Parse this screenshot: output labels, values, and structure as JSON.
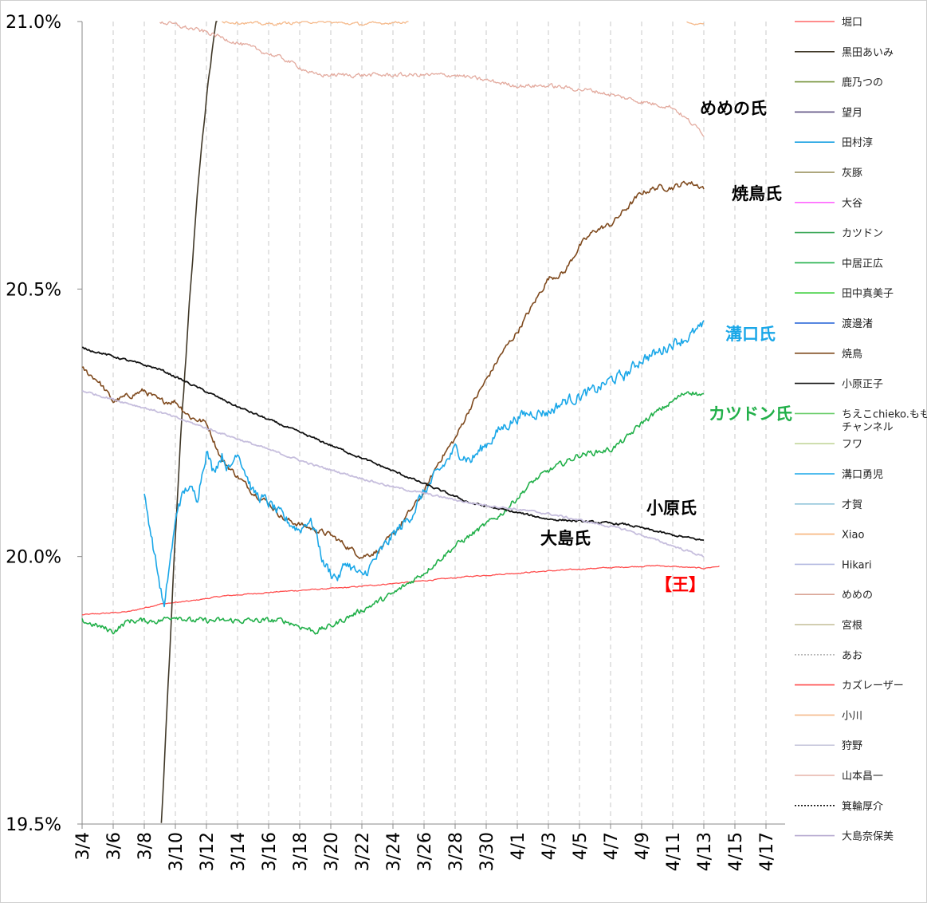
{
  "chart_data": {
    "type": "line",
    "title": "",
    "xlabel": "",
    "ylabel": "",
    "ylim": [
      19.5,
      21.0
    ],
    "x_range": [
      "3/4",
      "4/18"
    ],
    "y_ticks": [
      "21.0%",
      "20.5%",
      "20.0%",
      "19.5%"
    ],
    "x_tick_labels": [
      "3/4",
      "3/6",
      "3/8",
      "3/10",
      "3/12",
      "3/14",
      "3/16",
      "3/18",
      "3/20",
      "3/22",
      "3/24",
      "3/26",
      "3/28",
      "3/30",
      "4/1",
      "4/3",
      "4/5",
      "4/7",
      "4/9",
      "4/11",
      "4/13",
      "4/15",
      "4/17"
    ],
    "grid": "vertical dashed",
    "legend_position": "right",
    "legend": [
      {
        "name": "堀口",
        "color": "#ff6666",
        "dash": "solid"
      },
      {
        "name": "黒田あいみ",
        "color": "#403828",
        "dash": "solid"
      },
      {
        "name": "鹿乃つの",
        "color": "#77933c",
        "dash": "solid"
      },
      {
        "name": "望月",
        "color": "#5b4e80",
        "dash": "solid"
      },
      {
        "name": "田村淳",
        "color": "#1ba1e2",
        "dash": "solid"
      },
      {
        "name": "灰豚",
        "color": "#948a54",
        "dash": "solid"
      },
      {
        "name": "大谷",
        "color": "#ff66ff",
        "dash": "solid"
      },
      {
        "name": "カツドン",
        "color": "#3aa757",
        "dash": "solid"
      },
      {
        "name": "中居正広",
        "color": "#22b04a",
        "dash": "solid"
      },
      {
        "name": "田中真美子",
        "color": "#33cc33",
        "dash": "solid"
      },
      {
        "name": "渡邊渚",
        "color": "#1f5fd6",
        "dash": "solid"
      },
      {
        "name": "焼鳥",
        "color": "#7f4a1e",
        "dash": "solid"
      },
      {
        "name": "小原正子",
        "color": "#111111",
        "dash": "solid"
      },
      {
        "name": "ちえこchieko.ももチャンネル",
        "color": "#66cc66",
        "dash": "solid"
      },
      {
        "name": "フワ",
        "color": "#c3d69b",
        "dash": "solid"
      },
      {
        "name": "溝口勇児",
        "color": "#1aa7e8",
        "dash": "solid"
      },
      {
        "name": "才賀",
        "color": "#8fc3d9",
        "dash": "solid"
      },
      {
        "name": "Xiao",
        "color": "#f7b47a",
        "dash": "solid"
      },
      {
        "name": "Hikari",
        "color": "#b3b9e0",
        "dash": "solid"
      },
      {
        "name": "めめの",
        "color": "#d9a596",
        "dash": "solid"
      },
      {
        "name": "宮根",
        "color": "#c4bd97",
        "dash": "solid"
      },
      {
        "name": "あお",
        "color": "#b8b8b8",
        "dash": "dotted"
      },
      {
        "name": "カズレーザー",
        "color": "#ff4d4d",
        "dash": "solid"
      },
      {
        "name": "小川",
        "color": "#f5b98a",
        "dash": "solid"
      },
      {
        "name": "狩野",
        "color": "#c9c9dd",
        "dash": "solid"
      },
      {
        "name": "山本昌一",
        "color": "#e6b4a8",
        "dash": "solid"
      },
      {
        "name": "箕輪厚介",
        "color": "#111111",
        "dash": "dotted"
      },
      {
        "name": "大島奈保美",
        "color": "#b6a9d0",
        "dash": "solid"
      }
    ],
    "series": [
      {
        "key": "kazuraser",
        "color": "#ff4d4d",
        "width": 1.3,
        "noise": 0.0008,
        "points": [
          [
            0,
            19.891
          ],
          [
            3,
            19.897
          ],
          [
            5,
            19.911
          ],
          [
            7,
            19.917
          ],
          [
            9,
            19.926
          ],
          [
            13,
            19.935
          ],
          [
            17,
            19.942
          ],
          [
            21,
            19.952
          ],
          [
            25,
            19.963
          ],
          [
            30,
            19.973
          ],
          [
            33,
            19.978
          ],
          [
            37,
            19.983
          ],
          [
            40,
            19.978
          ],
          [
            41,
            19.982
          ]
        ]
      },
      {
        "key": "kuroda",
        "color": "#403828",
        "width": 1.6,
        "noise": 0.004,
        "points": [
          [
            5.1,
            19.5
          ],
          [
            5.5,
            19.74
          ],
          [
            5.9,
            19.98
          ],
          [
            6.3,
            20.2
          ],
          [
            6.9,
            20.47
          ],
          [
            7.5,
            20.71
          ],
          [
            8.1,
            20.88
          ],
          [
            8.7,
            21.02
          ]
        ]
      },
      {
        "key": "yakitori",
        "color": "#7f4a1e",
        "width": 1.6,
        "noise": 0.004,
        "points": [
          [
            0,
            20.35
          ],
          [
            1,
            20.33
          ],
          [
            2,
            20.29
          ],
          [
            3,
            20.3
          ],
          [
            4,
            20.31
          ],
          [
            5,
            20.29
          ],
          [
            6,
            20.29
          ],
          [
            7,
            20.26
          ],
          [
            8,
            20.25
          ],
          [
            9,
            20.18
          ],
          [
            10,
            20.15
          ],
          [
            11,
            20.12
          ],
          [
            12,
            20.1
          ],
          [
            13,
            20.07
          ],
          [
            14,
            20.06
          ],
          [
            15,
            20.05
          ],
          [
            16,
            20.04
          ],
          [
            17,
            20.02
          ],
          [
            18,
            20.0
          ],
          [
            19,
            20.01
          ],
          [
            20,
            20.04
          ],
          [
            21,
            20.08
          ],
          [
            22,
            20.12
          ],
          [
            23,
            20.18
          ],
          [
            24,
            20.22
          ],
          [
            25,
            20.28
          ],
          [
            26,
            20.33
          ],
          [
            27,
            20.38
          ],
          [
            28,
            20.42
          ],
          [
            29,
            20.47
          ],
          [
            30,
            20.52
          ],
          [
            31,
            20.53
          ],
          [
            32,
            20.58
          ],
          [
            33,
            20.61
          ],
          [
            34,
            20.62
          ],
          [
            35,
            20.65
          ],
          [
            36,
            20.68
          ],
          [
            37,
            20.69
          ],
          [
            38,
            20.69
          ],
          [
            39,
            20.7
          ],
          [
            40,
            20.69
          ]
        ]
      },
      {
        "key": "mizoguchi",
        "color": "#1aa7e8",
        "width": 1.6,
        "noise": 0.008,
        "points": [
          [
            4,
            20.11
          ],
          [
            4.4,
            20.05
          ],
          [
            4.8,
            19.98
          ],
          [
            5.3,
            19.9
          ],
          [
            5.6,
            19.98
          ],
          [
            6.2,
            20.1
          ],
          [
            6.8,
            20.13
          ],
          [
            7.4,
            20.11
          ],
          [
            8,
            20.2
          ],
          [
            8.4,
            20.16
          ],
          [
            9,
            20.19
          ],
          [
            9.5,
            20.16
          ],
          [
            10,
            20.2
          ],
          [
            10.5,
            20.16
          ],
          [
            11,
            20.12
          ],
          [
            12,
            20.1
          ],
          [
            13,
            20.07
          ],
          [
            14,
            20.05
          ],
          [
            14.6,
            20.07
          ],
          [
            15,
            20.05
          ],
          [
            15.5,
            19.99
          ],
          [
            16,
            19.97
          ],
          [
            16.5,
            19.96
          ],
          [
            17,
            19.99
          ],
          [
            18,
            19.96
          ],
          [
            19,
            20.0
          ],
          [
            20,
            20.04
          ],
          [
            21,
            20.07
          ],
          [
            22,
            20.12
          ],
          [
            23,
            20.16
          ],
          [
            24,
            20.2
          ],
          [
            25,
            20.18
          ],
          [
            26,
            20.21
          ],
          [
            27,
            20.24
          ],
          [
            28,
            20.26
          ],
          [
            29,
            20.27
          ],
          [
            30,
            20.27
          ],
          [
            31,
            20.29
          ],
          [
            32,
            20.3
          ],
          [
            33,
            20.31
          ],
          [
            34,
            20.33
          ],
          [
            35,
            20.34
          ],
          [
            36,
            20.37
          ],
          [
            37,
            20.38
          ],
          [
            38,
            20.4
          ],
          [
            39,
            20.41
          ],
          [
            40,
            20.43
          ]
        ]
      },
      {
        "key": "katsudon",
        "color": "#22b04a",
        "width": 1.6,
        "noise": 0.004,
        "points": [
          [
            0,
            19.88
          ],
          [
            2,
            19.86
          ],
          [
            3,
            19.88
          ],
          [
            5,
            19.88
          ],
          [
            6,
            19.89
          ],
          [
            7,
            19.88
          ],
          [
            8,
            19.88
          ],
          [
            9,
            19.88
          ],
          [
            11,
            19.88
          ],
          [
            12,
            19.88
          ],
          [
            13,
            19.88
          ],
          [
            14,
            19.87
          ],
          [
            15,
            19.86
          ],
          [
            16,
            19.87
          ],
          [
            18,
            19.9
          ],
          [
            20,
            19.93
          ],
          [
            22,
            19.97
          ],
          [
            24,
            20.02
          ],
          [
            26,
            20.06
          ],
          [
            27,
            20.08
          ],
          [
            28,
            20.11
          ],
          [
            29,
            20.14
          ],
          [
            30,
            20.16
          ],
          [
            32,
            20.19
          ],
          [
            34,
            20.2
          ],
          [
            35,
            20.22
          ],
          [
            36,
            20.25
          ],
          [
            38,
            20.29
          ],
          [
            39,
            20.31
          ],
          [
            40,
            20.3
          ]
        ]
      },
      {
        "key": "ohara",
        "color": "#111111",
        "width": 1.8,
        "noise": 0.0015,
        "points": [
          [
            0,
            20.39
          ],
          [
            5,
            20.35
          ],
          [
            10,
            20.28
          ],
          [
            15,
            20.22
          ],
          [
            20,
            20.16
          ],
          [
            25,
            20.1
          ],
          [
            30,
            20.07
          ],
          [
            35,
            20.06
          ],
          [
            38,
            20.04
          ],
          [
            40,
            20.03
          ]
        ]
      },
      {
        "key": "oshima",
        "color": "#c6bedd",
        "width": 1.8,
        "noise": 0.0015,
        "points": [
          [
            0,
            20.31
          ],
          [
            5,
            20.27
          ],
          [
            10,
            20.22
          ],
          [
            15,
            20.17
          ],
          [
            20,
            20.13
          ],
          [
            25,
            20.1
          ],
          [
            30,
            20.08
          ],
          [
            35,
            20.05
          ],
          [
            38,
            20.02
          ],
          [
            40,
            20.0
          ]
        ]
      },
      {
        "key": "memeno",
        "color": "#e3aa9e",
        "width": 1.3,
        "noise": 0.003,
        "points": [
          [
            5,
            21.0
          ],
          [
            8,
            20.98
          ],
          [
            11,
            20.95
          ],
          [
            13,
            20.93
          ],
          [
            15,
            20.9
          ],
          [
            20,
            20.9
          ],
          [
            24,
            20.9
          ],
          [
            28,
            20.88
          ],
          [
            30,
            20.88
          ],
          [
            33,
            20.87
          ],
          [
            36,
            20.85
          ],
          [
            38,
            20.84
          ],
          [
            40,
            20.79
          ]
        ]
      },
      {
        "key": "ogawa",
        "color": "#f5b98a",
        "width": 1.3,
        "noise": 0.002,
        "points": [
          [
            9,
            21.0
          ],
          [
            12,
            20.995
          ],
          [
            15,
            21.0
          ],
          [
            18,
            20.995
          ],
          [
            21,
            21.0
          ]
        ]
      },
      {
        "key": "ogawa2",
        "color": "#f5b98a",
        "width": 1.3,
        "noise": 0.001,
        "points": [
          [
            38.9,
            21.0
          ],
          [
            39.4,
            20.995
          ],
          [
            40,
            20.995
          ]
        ]
      }
    ],
    "annotations": [
      {
        "text": "めめの氏",
        "color": "#000000"
      },
      {
        "text": "焼鳥氏",
        "color": "#000000"
      },
      {
        "text": "溝口氏",
        "color": "#1aa7e8"
      },
      {
        "text": "カツドン氏",
        "color": "#22b04a"
      },
      {
        "text": "小原氏",
        "color": "#000000"
      },
      {
        "text": "大島氏",
        "color": "#000000"
      },
      {
        "text": "【王】",
        "color": "#ff0000"
      }
    ]
  }
}
